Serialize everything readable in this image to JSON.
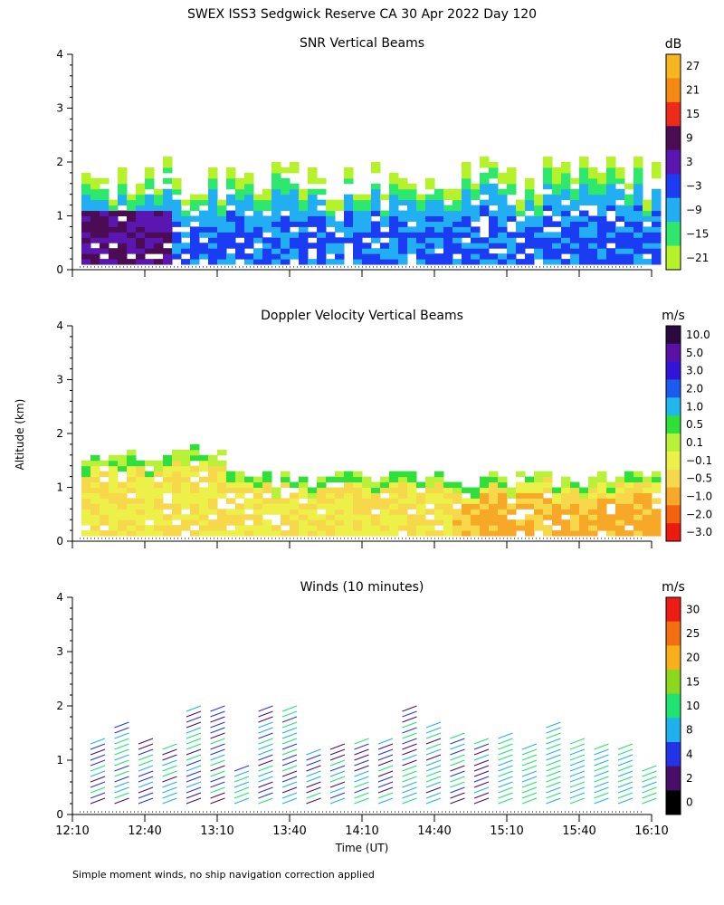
{
  "header": {
    "title": "SWEX ISS3 Sedgwick Reserve CA  30 Apr 2022 Day 120"
  },
  "footer": {
    "note": "Simple moment winds, no ship navigation correction applied"
  },
  "shared_axes": {
    "ylabel": "Altitude (km)",
    "xlabel": "Time (UT)",
    "xticks": [
      "12:10",
      "12:40",
      "13:10",
      "13:40",
      "14:10",
      "14:40",
      "15:10",
      "15:40",
      "16:10"
    ],
    "yticks": [
      "0",
      "1",
      "2",
      "3",
      "4"
    ]
  },
  "chart_data": [
    {
      "type": "heatmap",
      "title": "SNR Vertical Beams",
      "xlabel": "",
      "ylabel": "Altitude (km)",
      "xlim": [
        "12:10",
        "16:10"
      ],
      "ylim": [
        0,
        4
      ],
      "colorbar": {
        "unit": "dB",
        "labels": [
          "27",
          "21",
          "15",
          "9",
          "3",
          "−3",
          "−9",
          "−15",
          "−21"
        ],
        "colors": [
          "#f7b51e",
          "#f58a12",
          "#ee2b18",
          "#4c0c54",
          "#5b16b2",
          "#1b3cf3",
          "#22aef2",
          "#2ee86e",
          "#b6f22a"
        ]
      },
      "description_range_km": [
        0.1,
        2.3
      ]
    },
    {
      "type": "heatmap",
      "title": "Doppler Velocity Vertical Beams",
      "xlabel": "",
      "ylabel": "Altitude (km)",
      "xlim": [
        "12:10",
        "16:10"
      ],
      "ylim": [
        0,
        4
      ],
      "colorbar": {
        "unit": "m/s",
        "labels": [
          "10.0",
          "5.0",
          "3.0",
          "2.0",
          "1.0",
          "0.5",
          "0.1",
          "−0.1",
          "−0.5",
          "−1.0",
          "−2.0",
          "−3.0"
        ],
        "colors": [
          "#2a0a3e",
          "#5a10a6",
          "#3214d8",
          "#1c5af0",
          "#1eb8ee",
          "#2fe03a",
          "#b8f03a",
          "#eef04a",
          "#f7d84a",
          "#f7a826",
          "#f5620f",
          "#ee1a12"
        ]
      }
    },
    {
      "type": "scatter",
      "title": "Winds (10 minutes)",
      "xlabel": "Time (UT)",
      "ylabel": "Altitude (km)",
      "xlim": [
        "12:10",
        "16:10"
      ],
      "ylim": [
        0,
        4
      ],
      "colorbar": {
        "unit": "m/s",
        "labels": [
          "30",
          "25",
          "20",
          "15",
          "10",
          "8",
          "4",
          "2",
          "0"
        ],
        "colors": [
          "#ee1c14",
          "#f56e10",
          "#f7b01a",
          "#8cd81e",
          "#1fe36f",
          "#1fb0ee",
          "#2233e8",
          "#4a0d6a",
          "#000000"
        ]
      }
    }
  ]
}
